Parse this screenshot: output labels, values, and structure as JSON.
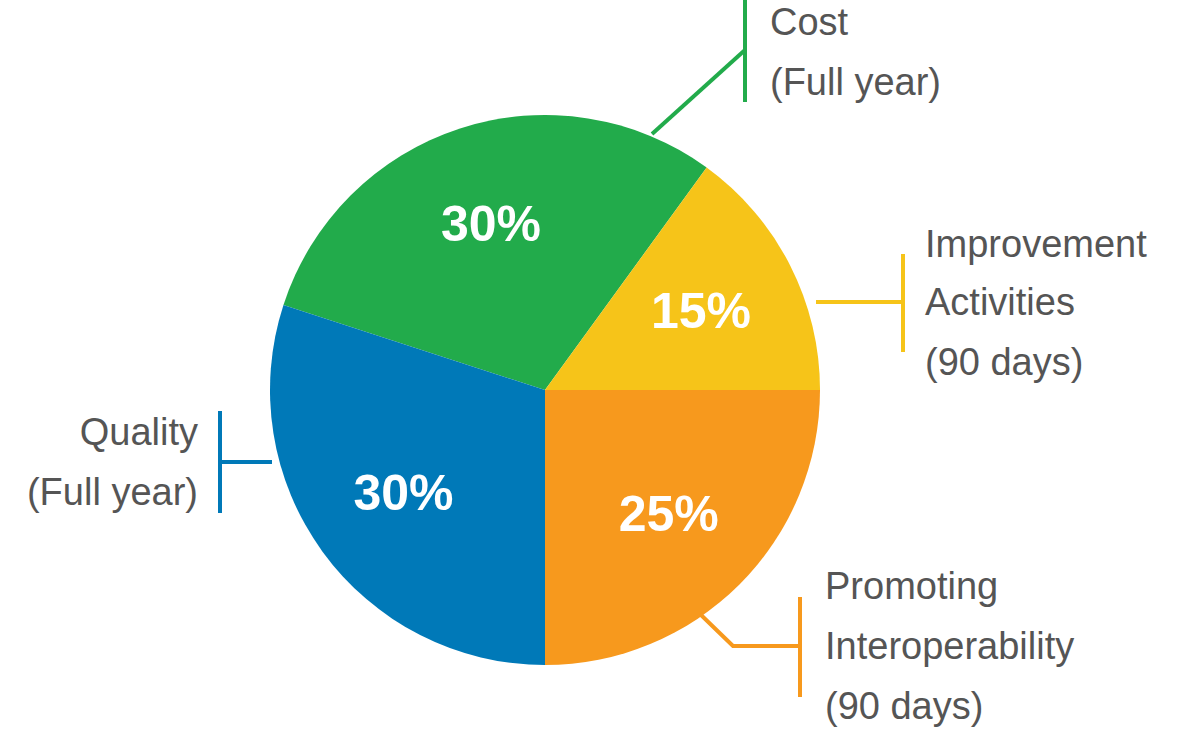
{
  "chart_data": {
    "type": "pie",
    "categories": [
      [
        "Cost",
        "(Full year)"
      ],
      [
        "Improvement",
        "Activities",
        "(90 days)"
      ],
      [
        "Promoting",
        "Interoperability",
        "(90 days)"
      ],
      [
        "Quality",
        "(Full year)"
      ]
    ],
    "values": [
      30,
      15,
      25,
      30
    ],
    "value_labels": [
      "30%",
      "15%",
      "25%",
      "30%"
    ],
    "colors": [
      "#22ab4b",
      "#f6c419",
      "#f7991d",
      "#0079b8"
    ],
    "data_labels": true
  }
}
